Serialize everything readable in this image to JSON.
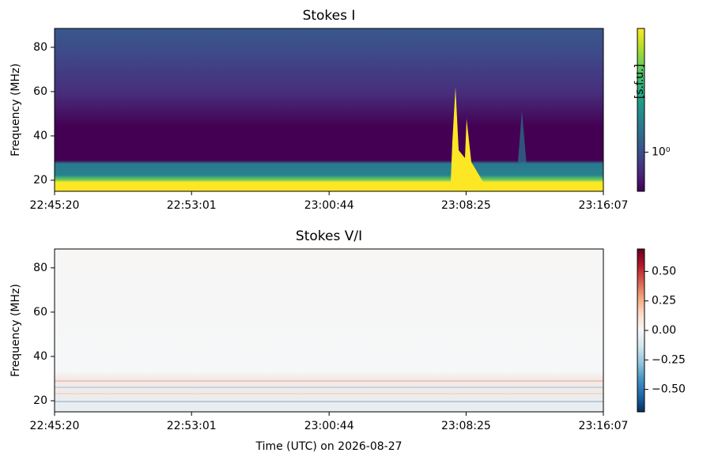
{
  "chart_data": [
    {
      "type": "heatmap",
      "title": "Stokes I",
      "ylabel": "Frequency (MHz)",
      "xlim": [
        81920,
        83767
      ],
      "xticks": [
        {
          "value": 81920,
          "label": "22:45:20"
        },
        {
          "value": 82381,
          "label": "22:53:01"
        },
        {
          "value": 82844,
          "label": "23:00:44"
        },
        {
          "value": 83305,
          "label": "23:08:25"
        },
        {
          "value": 83767,
          "label": "23:16:07"
        }
      ],
      "ylim": [
        15,
        88.5
      ],
      "yticks": [
        20,
        40,
        60,
        80
      ],
      "colorbar": {
        "label": "[s.f.u.]",
        "scale": "log",
        "colormap": "viridis",
        "clim": [
          0.5,
          9
        ],
        "ticks": [
          {
            "value": 1,
            "label": "10⁰"
          }
        ]
      }
    },
    {
      "type": "heatmap",
      "title": "Stokes V/I",
      "ylabel": "Frequency (MHz)",
      "xlabel": "Time (UTC) on 2026-08-27",
      "xlim": [
        81920,
        83767
      ],
      "xticks": [
        {
          "value": 81920,
          "label": "22:45:20"
        },
        {
          "value": 82381,
          "label": "22:53:01"
        },
        {
          "value": 82844,
          "label": "23:00:44"
        },
        {
          "value": 83305,
          "label": "23:08:25"
        },
        {
          "value": 83767,
          "label": "23:16:07"
        }
      ],
      "ylim": [
        15,
        88.5
      ],
      "yticks": [
        20,
        40,
        60,
        80
      ],
      "colorbar": {
        "scale": "linear",
        "colormap": "RdBu_r",
        "clim": [
          -0.69,
          0.69
        ],
        "ticks": [
          {
            "value": -0.5,
            "label": "−0.50"
          },
          {
            "value": -0.25,
            "label": "−0.25"
          },
          {
            "value": 0,
            "label": "0.00"
          },
          {
            "value": 0.25,
            "label": "0.25"
          },
          {
            "value": 0.5,
            "label": "0.50"
          }
        ]
      }
    }
  ]
}
